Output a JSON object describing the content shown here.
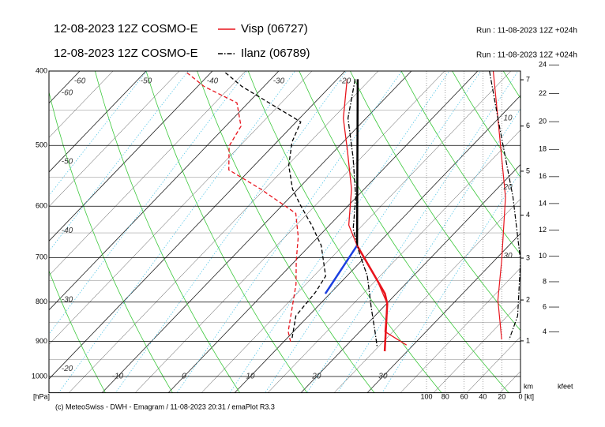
{
  "chart_data": {
    "type": "emagram",
    "ylim": [
      400,
      1050
    ],
    "yticks": [
      400,
      500,
      600,
      700,
      800,
      900,
      1000
    ],
    "y_label": "[hPa]",
    "log_y": true,
    "xlim": [
      -18,
      53.1
    ],
    "bottom_temperature_labels": [
      -10,
      0,
      10,
      20,
      30
    ],
    "top_temperature_labels": [
      -60,
      -50,
      -40,
      -30,
      -20
    ],
    "left_temperature_labels": [
      -60,
      -50,
      -40,
      -30,
      -20
    ],
    "right_temperature_labels": [
      10,
      20,
      30
    ],
    "wind_xlim": [
      100,
      0
    ],
    "wind_ticks": [
      100,
      80,
      60,
      40,
      20,
      0
    ],
    "wind_label": "[kt]",
    "km_label": "km",
    "km_ticks": [
      1,
      2,
      3,
      4,
      5,
      6,
      7
    ],
    "kfeet_label": "kfeet",
    "kfeet_ticks": [
      4,
      6,
      8,
      10,
      12,
      14,
      16,
      18,
      20,
      22,
      24
    ],
    "series": [
      {
        "name": "Visp (06727)",
        "model": "12-08-2023 12Z COSMO-E",
        "run": "Run : 11-08-2023 12Z +024h",
        "color": "#e8141c",
        "style": "solid",
        "temperature": {
          "pressure": [
            410,
            461,
            507,
            570,
            635,
            675,
            740,
            804,
            874,
            910
          ],
          "values": [
            -18.5,
            -13.4,
            -8.2,
            -1.9,
            2.9,
            7.1,
            14.3,
            20.1,
            23.8,
            29
          ]
        },
        "dewpoint": {
          "pressure": [
            402,
            419,
            440,
            472,
            501,
            538,
            570,
            613,
            658,
            706,
            758,
            874,
            905
          ],
          "values": [
            -43.6,
            -39,
            -31.7,
            -27.7,
            -26.6,
            -23.2,
            -15.6,
            -6.8,
            -3,
            0.1,
            3.5,
            9.2,
            11.3
          ]
        },
        "wind": {
          "pressure": [
            400,
            461,
            584,
            706,
            795,
            895
          ],
          "values": [
            29,
            24,
            16,
            20,
            24,
            20
          ]
        }
      },
      {
        "name": "Ilanz (06789)",
        "model": "12-08-2023 12Z COSMO-E",
        "run": "Run : 11-08-2023 12Z +024h",
        "color": "#000000",
        "style": "dashdot",
        "temperature": {
          "pressure": [
            410,
            461,
            519,
            584,
            642,
            690,
            740,
            814,
            874,
            916
          ],
          "values": [
            -17.3,
            -12.7,
            -6.2,
            -0.1,
            4.1,
            8.5,
            13.1,
            18.3,
            22.3,
            24.9
          ]
        },
        "dewpoint": {
          "pressure": [
            402,
            419,
            466,
            495,
            531,
            570,
            598,
            635,
            675,
            740,
            776,
            834,
            895
          ],
          "values": [
            -37.8,
            -33.3,
            -19.3,
            -17.7,
            -14.8,
            -10.8,
            -7.3,
            -2.7,
            1.7,
            6.8,
            7.6,
            8.1,
            10.9
          ]
        },
        "wind": {
          "pressure": [
            400,
            461,
            584,
            706,
            834,
            895
          ],
          "values": [
            33,
            24,
            8,
            0,
            3,
            12
          ]
        }
      }
    ],
    "parcel_lines": [
      {
        "color": "#000000",
        "pressure": [
          410,
          675
        ],
        "values": [
          -16.9,
          7.1
        ]
      },
      {
        "color": "#1a3fe0",
        "pressure": [
          675,
          780
        ],
        "values": [
          7.1,
          9.3
        ]
      },
      {
        "color": "#e8141c",
        "pressure": [
          675,
          780,
          804,
          927
        ],
        "values": [
          7.1,
          18.3,
          20.1,
          26.6
        ]
      }
    ],
    "footer": "(c) MeteoSwiss - DWH - Emagram / 11-08-2023 20:31 / emaPlot R3.3"
  }
}
